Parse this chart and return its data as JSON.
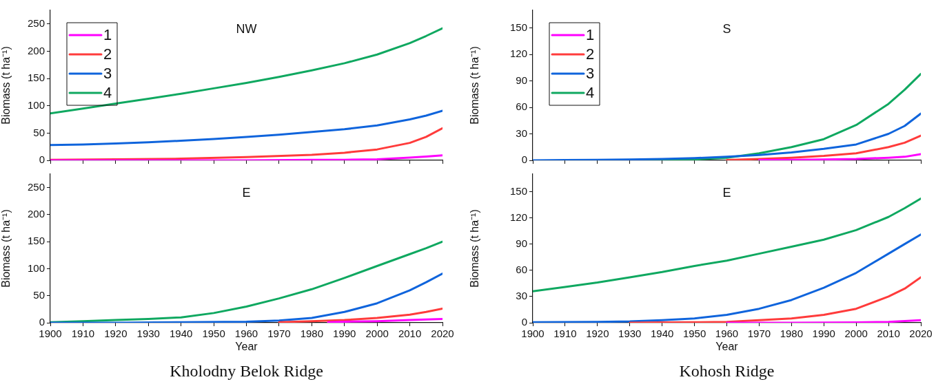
{
  "chart_data": [
    {
      "type": "line",
      "title": "NW",
      "ylabel": "Biomass (t ha⁻¹)",
      "xlim": [
        1900,
        2020
      ],
      "xticks": [
        1900,
        1910,
        1920,
        1930,
        1940,
        1950,
        1960,
        1970,
        1980,
        1990,
        2000,
        2010,
        2020
      ],
      "ylim": [
        0,
        275
      ],
      "yticks": [
        0,
        50,
        100,
        150,
        200,
        250
      ],
      "tick_labels": "y",
      "legend": "top left",
      "series": [
        {
          "name": "1",
          "color": "#ff00ff",
          "x": [
            1900,
            1920,
            1940,
            1960,
            1980,
            1990,
            2000,
            2010,
            2015,
            2020
          ],
          "values": [
            0,
            0,
            0,
            0,
            1,
            1,
            2,
            5,
            7,
            9
          ]
        },
        {
          "name": "2",
          "color": "#ff3b3b",
          "x": [
            1900,
            1920,
            1940,
            1960,
            1980,
            1990,
            2000,
            2010,
            2015,
            2020
          ],
          "values": [
            1,
            2,
            3,
            6,
            10,
            14,
            20,
            32,
            43,
            59
          ]
        },
        {
          "name": "3",
          "color": "#0f64dc",
          "x": [
            1900,
            1910,
            1920,
            1930,
            1940,
            1950,
            1960,
            1970,
            1980,
            1990,
            2000,
            2010,
            2015,
            2020
          ],
          "values": [
            28,
            29,
            31,
            33,
            36,
            39,
            43,
            47,
            52,
            57,
            64,
            75,
            82,
            91
          ]
        },
        {
          "name": "4",
          "color": "#0fa860",
          "x": [
            1900,
            1910,
            1920,
            1930,
            1940,
            1950,
            1960,
            1970,
            1980,
            1990,
            2000,
            2010,
            2015,
            2020
          ],
          "values": [
            86,
            95,
            104,
            113,
            122,
            132,
            142,
            153,
            165,
            178,
            194,
            215,
            228,
            242
          ]
        }
      ]
    },
    {
      "type": "line",
      "title": "E",
      "xlabel": "Year",
      "ylabel": "Biomass (t ha⁻¹)",
      "xlim": [
        1900,
        2020
      ],
      "xticks": [
        1900,
        1910,
        1920,
        1930,
        1940,
        1950,
        1960,
        1970,
        1980,
        1990,
        2000,
        2010,
        2020
      ],
      "ylim": [
        0,
        275
      ],
      "yticks": [
        0,
        50,
        100,
        150,
        200,
        250
      ],
      "annotations": [
        "Kholodny Belok Ridge"
      ],
      "series": [
        {
          "color": "#ff00ff",
          "x": [
            1985,
            1990,
            2000,
            2010,
            2020
          ],
          "values": [
            1,
            2,
            3,
            5,
            7
          ]
        },
        {
          "color": "#ff3b3b",
          "x": [
            1970,
            1980,
            1990,
            2000,
            2010,
            2015,
            2020
          ],
          "values": [
            1,
            3,
            5,
            9,
            15,
            20,
            26
          ]
        },
        {
          "color": "#0f64dc",
          "x": [
            1900,
            1920,
            1940,
            1960,
            1970,
            1980,
            1990,
            2000,
            2010,
            2015,
            2020
          ],
          "values": [
            0,
            0,
            1,
            2,
            4,
            9,
            20,
            36,
            60,
            75,
            91
          ]
        },
        {
          "color": "#0fa860",
          "x": [
            1900,
            1910,
            1920,
            1930,
            1940,
            1950,
            1960,
            1970,
            1980,
            1990,
            2000,
            2010,
            2015,
            2020
          ],
          "values": [
            1,
            3,
            5,
            7,
            10,
            18,
            30,
            45,
            62,
            83,
            105,
            127,
            138,
            150
          ]
        }
      ]
    },
    {
      "type": "line",
      "title": "S",
      "ylabel": "Biomass (t ha⁻¹)",
      "xlim": [
        1900,
        2020
      ],
      "xticks": [
        1900,
        1910,
        1920,
        1930,
        1940,
        1950,
        1960,
        1970,
        1980,
        1990,
        2000,
        2010,
        2020
      ],
      "ylim": [
        0,
        170
      ],
      "yticks": [
        0,
        30,
        60,
        90,
        120,
        150
      ],
      "tick_labels": "y",
      "legend": "top left",
      "series": [
        {
          "name": "1",
          "color": "#ff00ff",
          "x": [
            1970,
            1980,
            1990,
            2000,
            2010,
            2015,
            2020
          ],
          "values": [
            0.3,
            0.5,
            1,
            1.5,
            3,
            4,
            7
          ]
        },
        {
          "name": "2",
          "color": "#ff3b3b",
          "x": [
            1960,
            1970,
            1980,
            1990,
            2000,
            2010,
            2015,
            2020
          ],
          "values": [
            0.3,
            1.5,
            3,
            5,
            8,
            15,
            20,
            28
          ]
        },
        {
          "name": "3",
          "color": "#0f64dc",
          "x": [
            1900,
            1910,
            1920,
            1930,
            1940,
            1950,
            1960,
            1970,
            1980,
            1990,
            2000,
            2010,
            2015,
            2020
          ],
          "values": [
            0,
            0.3,
            0.6,
            1,
            1.5,
            2.5,
            4,
            6,
            9,
            13,
            18,
            30,
            39,
            53
          ]
        },
        {
          "name": "4",
          "color": "#0fa860",
          "x": [
            1934,
            1940,
            1950,
            1960,
            1970,
            1980,
            1990,
            2000,
            2010,
            2015,
            2020
          ],
          "values": [
            0.5,
            0.5,
            1,
            3,
            8,
            15,
            24,
            40,
            64,
            80,
            98
          ]
        }
      ]
    },
    {
      "type": "line",
      "title": "E",
      "xlabel": "Year",
      "ylabel": "Biomass (t ha⁻¹)",
      "xlim": [
        1900,
        2020
      ],
      "xticks": [
        1900,
        1910,
        1920,
        1930,
        1940,
        1950,
        1960,
        1970,
        1980,
        1990,
        2000,
        2010,
        2020
      ],
      "ylim": [
        0,
        170
      ],
      "yticks": [
        0,
        30,
        60,
        90,
        120,
        150
      ],
      "annotations": [
        "Kohosh Ridge"
      ],
      "series": [
        {
          "color": "#ff00ff",
          "x": [
            1960,
            1980,
            2000,
            2010,
            2020
          ],
          "values": [
            0,
            0,
            0.3,
            1,
            3
          ]
        },
        {
          "color": "#ff3b3b",
          "x": [
            1930,
            1940,
            1950,
            1960,
            1970,
            1980,
            1990,
            2000,
            2010,
            2015,
            2020
          ],
          "values": [
            0,
            0.3,
            0.5,
            1,
            3,
            5,
            9,
            16,
            30,
            39,
            52
          ]
        },
        {
          "color": "#0f64dc",
          "x": [
            1900,
            1910,
            1920,
            1930,
            1940,
            1950,
            1960,
            1970,
            1980,
            1990,
            2000,
            2010,
            2015,
            2020
          ],
          "values": [
            0.5,
            0.7,
            1,
            1.5,
            3,
            5,
            9,
            16,
            26,
            40,
            57,
            79,
            90,
            101
          ]
        },
        {
          "color": "#0fa860",
          "x": [
            1900,
            1910,
            1920,
            1930,
            1940,
            1950,
            1960,
            1970,
            1980,
            1990,
            2000,
            2010,
            2015,
            2020
          ],
          "values": [
            36,
            41,
            46,
            52,
            58,
            65,
            71,
            79,
            87,
            95,
            106,
            121,
            131,
            142
          ]
        }
      ]
    }
  ]
}
